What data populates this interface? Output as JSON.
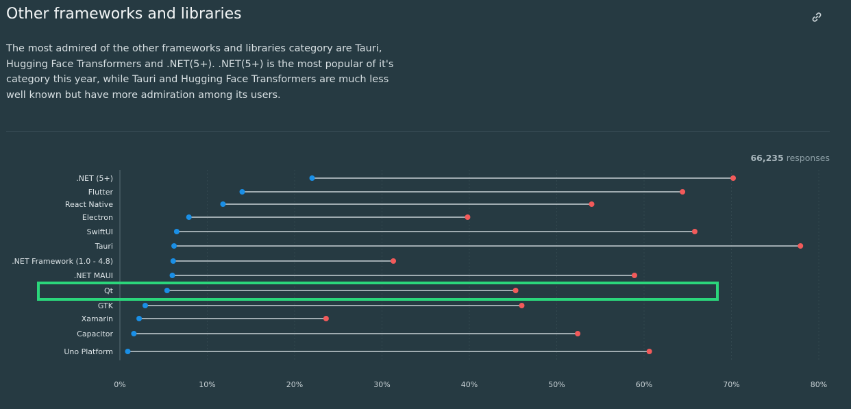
{
  "header": {
    "title": "Other frameworks and libraries",
    "description": "The most admired of the other frameworks and libraries category are Tauri, Hugging Face Transformers and .NET(5+). .NET(5+) is the most popular of it's category this year, while Tauri and Hugging Face Transformers are much less well known but have more admiration among its users.",
    "link_icon": "link-icon"
  },
  "responses": {
    "count": "66,235",
    "label": "responses"
  },
  "colors": {
    "background": "#263a42",
    "desired": "#1a8fe6",
    "admired": "#f25a5a",
    "connector": "#c9d2d6",
    "highlight": "#2bd67b"
  },
  "chart_data": {
    "type": "dumbbell",
    "categories": [
      ".NET (5+)",
      "Flutter",
      "React Native",
      "Electron",
      "SwiftUI",
      "Tauri",
      ".NET Framework (1.0 - 4.8)",
      ".NET MAUI",
      "Qt",
      "GTK",
      "Xamarin",
      "Capacitor",
      "Uno Platform"
    ],
    "series": [
      {
        "values": [
          22.0,
          14.0,
          11.8,
          7.9,
          6.5,
          6.2,
          6.1,
          6.0,
          5.4,
          2.9,
          2.2,
          1.6,
          0.9
        ]
      },
      {
        "values": [
          70.2,
          64.4,
          54.0,
          39.8,
          65.8,
          77.9,
          31.3,
          58.9,
          45.3,
          46.0,
          23.6,
          52.4,
          60.6
        ]
      }
    ],
    "x_ticks": [
      "0%",
      "10%",
      "20%",
      "30%",
      "40%",
      "50%",
      "60%",
      "70%",
      "80%"
    ],
    "xlim": [
      0,
      80
    ],
    "highlighted": "Qt"
  }
}
